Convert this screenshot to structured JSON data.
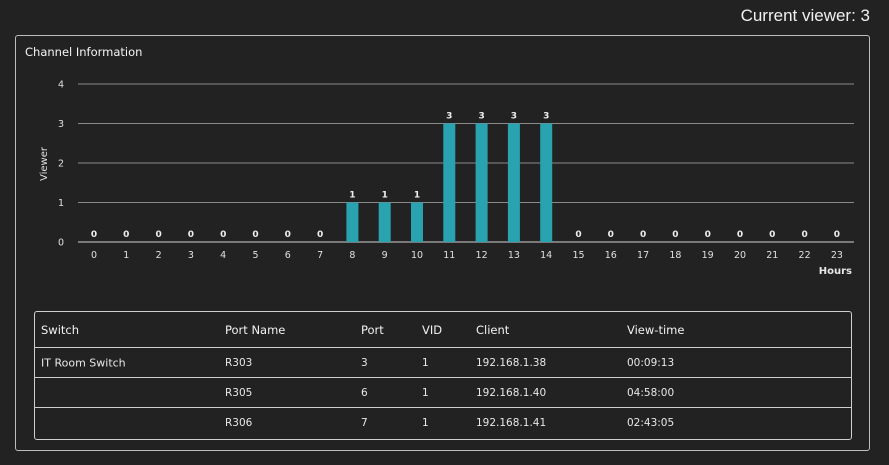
{
  "header": {
    "current_viewer": "Current viewer: 3"
  },
  "panel": {
    "title": "Channel Information"
  },
  "chart_data": {
    "type": "bar",
    "categories": [
      "0",
      "1",
      "2",
      "3",
      "4",
      "5",
      "6",
      "7",
      "8",
      "9",
      "10",
      "11",
      "12",
      "13",
      "14",
      "15",
      "16",
      "17",
      "18",
      "19",
      "20",
      "21",
      "22",
      "23"
    ],
    "values": [
      0,
      0,
      0,
      0,
      0,
      0,
      0,
      0,
      1,
      1,
      1,
      3,
      3,
      3,
      3,
      0,
      0,
      0,
      0,
      0,
      0,
      0,
      0,
      0
    ],
    "ylabel": "Viewer",
    "xlabel": "Hours",
    "ylim": [
      0,
      4
    ],
    "yticks": [
      "0",
      "1",
      "2",
      "3",
      "4"
    ],
    "grid": true,
    "bar_color": "#2aa3b0"
  },
  "table": {
    "columns": [
      "Switch",
      "Port Name",
      "Port",
      "VID",
      "Client",
      "View-time"
    ],
    "rows": [
      {
        "switch": "IT Room Switch",
        "port_name": "R303",
        "port": "3",
        "vid": "1",
        "client": "192.168.1.38",
        "view_time": "00:09:13"
      },
      {
        "switch": "",
        "port_name": "R305",
        "port": "6",
        "vid": "1",
        "client": "192.168.1.40",
        "view_time": "04:58:00"
      },
      {
        "switch": "",
        "port_name": "R306",
        "port": "7",
        "vid": "1",
        "client": "192.168.1.41",
        "view_time": "02:43:05"
      }
    ]
  }
}
